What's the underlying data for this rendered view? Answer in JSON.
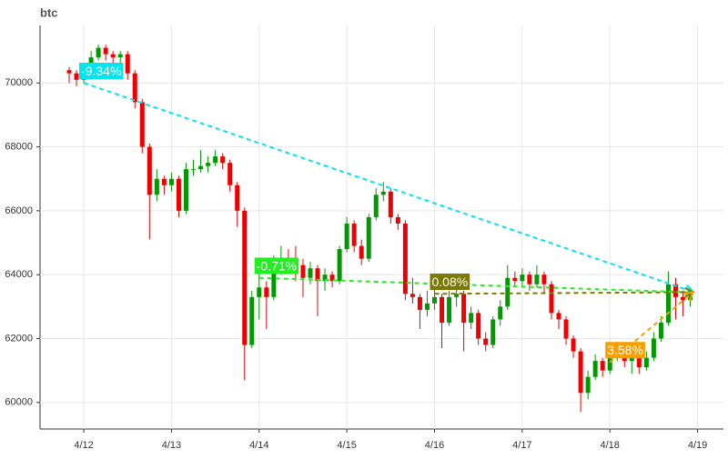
{
  "chart_data": {
    "type": "candlestick",
    "title": "btc",
    "categories": [
      null,
      null,
      "4/12",
      null,
      null,
      null,
      null,
      null,
      null,
      null,
      null,
      null,
      null,
      null,
      "4/13",
      null,
      null,
      null,
      null,
      null,
      null,
      null,
      null,
      null,
      null,
      null,
      "4/14",
      null,
      null,
      null,
      null,
      null,
      null,
      null,
      null,
      null,
      null,
      null,
      "4/15",
      null,
      null,
      null,
      null,
      null,
      null,
      null,
      null,
      null,
      null,
      null,
      "4/16",
      null,
      null,
      null,
      null,
      null,
      null,
      null,
      null,
      null,
      null,
      null,
      "4/17",
      null,
      null,
      null,
      null,
      null,
      null,
      null,
      null,
      null,
      null,
      null,
      "4/18",
      null,
      null,
      null,
      null,
      null,
      null,
      null,
      null,
      null,
      null,
      null,
      "4/19"
    ],
    "open": [
      70400,
      70300,
      70100,
      70200,
      70800,
      71100,
      70900,
      70800,
      70900,
      70300,
      69400,
      68000,
      66500,
      67000,
      66800,
      67000,
      66000,
      67300,
      67300,
      67400,
      67500,
      67700,
      67500,
      66800,
      66000,
      61800,
      63300,
      63600,
      63300,
      64200,
      64500,
      64400,
      64300,
      63900,
      64200,
      63800,
      64000,
      63800,
      64800,
      65600,
      64900,
      64500,
      65800,
      66500,
      66600,
      65800,
      65600,
      63400,
      63300,
      62900,
      63100,
      63300,
      62500,
      63300,
      63400,
      62500,
      62800,
      62000,
      61800,
      62600,
      63000,
      63900,
      63800,
      64000,
      63700,
      64000,
      63700,
      62800,
      62600,
      62000,
      61600,
      60300,
      60800,
      61300,
      61000,
      61400,
      61700,
      61300,
      61400,
      61100,
      61400,
      62000,
      62500,
      63700,
      63300,
      63200,
      null
    ],
    "high": [
      70500,
      70400,
      70400,
      71000,
      71200,
      71200,
      71000,
      71000,
      71000,
      70400,
      69500,
      68100,
      67300,
      67100,
      67200,
      67100,
      67500,
      67600,
      67900,
      67700,
      67900,
      67800,
      67600,
      66900,
      66100,
      63500,
      64300,
      63800,
      64600,
      64900,
      64800,
      64900,
      64500,
      64400,
      64300,
      64200,
      64100,
      64900,
      65800,
      65700,
      65100,
      65900,
      66700,
      66900,
      66700,
      65900,
      65700,
      63900,
      63400,
      63500,
      63700,
      63400,
      63500,
      63700,
      63500,
      63000,
      62900,
      62200,
      62700,
      63200,
      64300,
      64100,
      64200,
      64100,
      64300,
      64100,
      63800,
      62900,
      62700,
      62100,
      61700,
      61000,
      61500,
      61400,
      61600,
      61900,
      61800,
      61600,
      61500,
      61600,
      62200,
      62700,
      64100,
      63900,
      63500,
      63600,
      null
    ],
    "low": [
      70000,
      69900,
      70000,
      70100,
      70700,
      70700,
      70600,
      70600,
      70100,
      69200,
      67800,
      65100,
      66300,
      66500,
      66600,
      65800,
      65900,
      67100,
      67200,
      67200,
      67400,
      67300,
      66600,
      65500,
      60700,
      61700,
      62600,
      62300,
      63200,
      64000,
      64100,
      63800,
      63300,
      63700,
      62700,
      63500,
      63600,
      63700,
      64700,
      64700,
      64300,
      64400,
      65700,
      66300,
      65600,
      65400,
      63200,
      63100,
      62300,
      62700,
      62900,
      61700,
      62400,
      63000,
      61600,
      62300,
      61800,
      61600,
      61700,
      62400,
      62900,
      63600,
      63600,
      63500,
      63600,
      63400,
      62600,
      62300,
      61800,
      61400,
      59700,
      60100,
      60700,
      60800,
      60900,
      61300,
      61100,
      60900,
      60900,
      61000,
      61300,
      61900,
      62400,
      62600,
      62700,
      63000,
      null
    ],
    "close": [
      70300,
      70100,
      70200,
      70800,
      71100,
      70900,
      70800,
      70900,
      70300,
      69400,
      68000,
      66500,
      67000,
      66800,
      67000,
      66000,
      67300,
      67300,
      67400,
      67500,
      67700,
      67500,
      66800,
      66000,
      61800,
      63300,
      63600,
      63300,
      64200,
      64500,
      64400,
      64300,
      63900,
      64200,
      63800,
      64000,
      63800,
      64800,
      65600,
      64900,
      64500,
      65800,
      66500,
      66600,
      65800,
      65600,
      63400,
      63300,
      62900,
      63100,
      63300,
      62500,
      63300,
      63400,
      62500,
      62800,
      62000,
      61800,
      62600,
      63000,
      63900,
      63800,
      64000,
      63700,
      64000,
      63700,
      62800,
      62600,
      62000,
      61600,
      60300,
      60800,
      61300,
      61000,
      61400,
      61700,
      61300,
      61400,
      61100,
      61400,
      62000,
      62500,
      63700,
      63300,
      63200,
      63400,
      null
    ],
    "up_color": "#009900",
    "down_color": "#ee0000",
    "ylim": [
      59170,
      71800
    ],
    "yticks": [
      60000,
      62000,
      64000,
      66000,
      68000,
      70000
    ],
    "grid": true,
    "annotations": [
      {
        "label": "-9.34%",
        "color": "#00e5ee",
        "from": "4/12",
        "to": "4/19",
        "start": 70000,
        "end": 63462
      },
      {
        "label": "-0.71%",
        "color": "#22ee22",
        "from": "4/14",
        "to": "4/19",
        "start": 63900,
        "end": 63446
      },
      {
        "label": "0.08%",
        "color": "#7a7a00",
        "from": "4/16",
        "to": "4/19",
        "start": 63400,
        "end": 63451
      },
      {
        "label": "3.58%",
        "color": "#f5a000",
        "from": "4/18",
        "to": "4/19",
        "start": 61260,
        "end": 63453
      }
    ]
  }
}
